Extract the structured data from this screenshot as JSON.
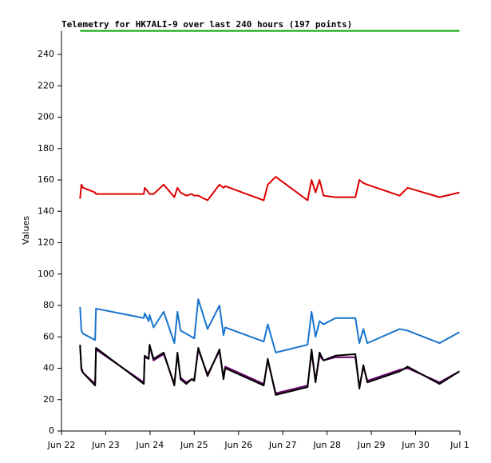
{
  "chart_data": {
    "type": "line",
    "title": "Telemetry for HK7ALI-9 over last 240 hours (197 points)",
    "y_label": "Values",
    "x": [
      0.42,
      0.45,
      0.49,
      0.76,
      0.78,
      1.86,
      1.88,
      1.97,
      1.99,
      2.08,
      2.31,
      2.55,
      2.62,
      2.69,
      2.82,
      2.94,
      3.0,
      3.09,
      3.3,
      3.57,
      3.66,
      3.7,
      4.57,
      4.66,
      4.84,
      5.56,
      5.65,
      5.74,
      5.83,
      5.92,
      6.19,
      6.64,
      6.73,
      6.82,
      6.91,
      7.64,
      7.82,
      8.54,
      8.99
    ],
    "series": [
      {
        "color": "#dd0000",
        "values": [
          148,
          157,
          155,
          152,
          151,
          151,
          155,
          152,
          151,
          151,
          157,
          149,
          155,
          152,
          150,
          151,
          150,
          150,
          147,
          157,
          155,
          156,
          147,
          157,
          162,
          147,
          160,
          152,
          160,
          150,
          149,
          149,
          160,
          158,
          157,
          150,
          155,
          149,
          152
        ]
      },
      {
        "color": "#1874cd",
        "values": [
          79,
          64,
          62,
          58,
          78,
          72,
          75,
          70,
          74,
          66,
          76,
          56,
          76,
          64,
          62,
          60,
          59,
          84,
          65,
          80,
          61,
          66,
          57,
          68,
          50,
          55,
          76,
          60,
          70,
          68,
          72,
          72,
          56,
          65,
          56,
          65,
          64,
          56,
          63
        ]
      },
      {
        "color": "#660066",
        "values": [
          54,
          39,
          37,
          30,
          52,
          31,
          47,
          46,
          54,
          45,
          49,
          30,
          49,
          34,
          31,
          33,
          33,
          52,
          36,
          51,
          34,
          41,
          30,
          45,
          24,
          29,
          50,
          32,
          48,
          45,
          47,
          47,
          28,
          41,
          32,
          39,
          40,
          31,
          38
        ]
      },
      {
        "color": "#000000",
        "values": [
          55,
          40,
          37,
          29,
          53,
          30,
          48,
          46,
          55,
          46,
          50,
          29,
          50,
          33,
          30,
          33,
          32,
          53,
          35,
          52,
          33,
          40,
          29,
          46,
          23,
          28,
          52,
          31,
          50,
          45,
          48,
          49,
          27,
          42,
          31,
          38,
          41,
          30,
          38
        ]
      },
      {
        "color": "#00aa00",
        "values": [
          255,
          255,
          255,
          255,
          255,
          255,
          255,
          255,
          255,
          255,
          255,
          255,
          255,
          255,
          255,
          255,
          255,
          255,
          255,
          255,
          255,
          255,
          255,
          255,
          255,
          255,
          255,
          255,
          255,
          255,
          255,
          255,
          255,
          255,
          255,
          255,
          255,
          255,
          255
        ]
      }
    ],
    "xlim": [
      0,
      9
    ],
    "xticks": [
      {
        "value": 0,
        "label": "Jun 22"
      },
      {
        "value": 1,
        "label": "Jun 23"
      },
      {
        "value": 2,
        "label": "Jun 24"
      },
      {
        "value": 3,
        "label": "Jun 25"
      },
      {
        "value": 4,
        "label": "Jun 26"
      },
      {
        "value": 5,
        "label": "Jun 27"
      },
      {
        "value": 6,
        "label": "Jun 28"
      },
      {
        "value": 7,
        "label": "Jun 29"
      },
      {
        "value": 8,
        "label": "Jun 30"
      },
      {
        "value": 9,
        "label": "Jul 1"
      }
    ],
    "ylim": [
      0,
      255
    ],
    "yticks": [
      0,
      20,
      40,
      60,
      80,
      100,
      120,
      140,
      160,
      180,
      200,
      220,
      240
    ]
  }
}
